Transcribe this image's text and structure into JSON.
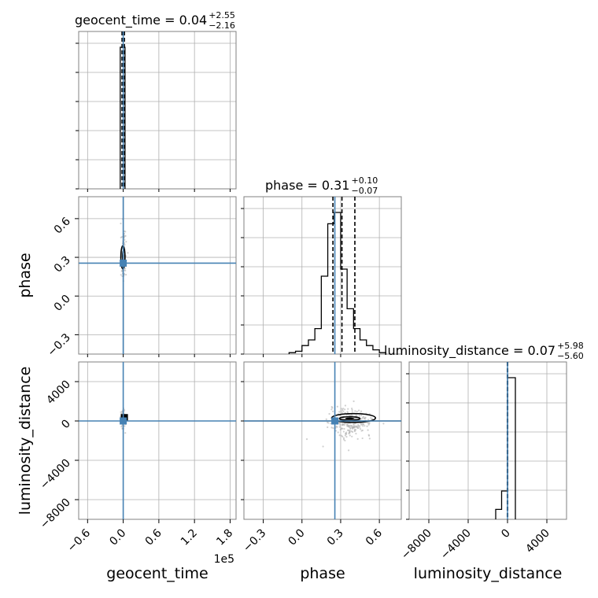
{
  "chart_data": {
    "type": "corner",
    "parameters": [
      "geocent_time",
      "phase",
      "luminosity_distance"
    ],
    "axis_labels": {
      "geocent_time": "geocent_time",
      "phase": "phase",
      "luminosity_distance": "luminosity_distance"
    },
    "offset_text": {
      "geocent_time": "1e5"
    },
    "titles": [
      {
        "param": "geocent_time",
        "name": "geocent_time",
        "median": "0.04",
        "plus": "+2.55",
        "minus": "−2.16"
      },
      {
        "param": "phase",
        "name": "phase",
        "median": "0.31",
        "plus": "+0.10",
        "minus": "−0.07"
      },
      {
        "param": "luminosity_distance",
        "name": "luminosity_distance",
        "median": "0.07",
        "plus": "+5.98",
        "minus": "−5.60"
      }
    ],
    "ranges": {
      "geocent_time": [
        -0.75,
        1.9
      ],
      "phase": [
        -0.45,
        0.77
      ],
      "luminosity_distance": [
        -10000,
        6000
      ]
    },
    "ticks": {
      "geocent_time": {
        "values": [
          -0.6,
          0.0,
          0.6,
          1.2,
          1.8
        ],
        "labels": [
          "−0.6",
          "0.0",
          "0.6",
          "1.2",
          "1.8"
        ]
      },
      "phase": {
        "values": [
          -0.3,
          0.0,
          0.3,
          0.6
        ],
        "labels": [
          "−0.3",
          "0.0",
          "0.3",
          "0.6"
        ]
      },
      "luminosity_distance_y": {
        "values": [
          4000,
          0,
          -4000,
          -8000
        ],
        "labels": [
          "4000",
          "0",
          "−4000",
          "−8000"
        ]
      },
      "luminosity_distance_x": {
        "values": [
          -8000,
          -4000,
          0,
          4000
        ],
        "labels": [
          "−8000",
          "−4000",
          "0",
          "4000"
        ]
      }
    },
    "truths": {
      "geocent_time": 0.0,
      "phase": 0.255,
      "luminosity_distance": 0
    },
    "quantiles": {
      "geocent_time": [
        -0.02,
        0.02
      ],
      "phase": [
        0.24,
        0.31,
        0.41
      ],
      "luminosity_distance": [
        -20,
        20
      ]
    },
    "histograms": {
      "geocent_time": {
        "edges": [
          -0.05,
          0.03
        ],
        "counts": [
          1.0
        ]
      },
      "phase": {
        "edges": [
          -0.1,
          -0.05,
          0.0,
          0.05,
          0.1,
          0.15,
          0.2,
          0.25,
          0.3,
          0.35,
          0.4,
          0.45,
          0.5,
          0.55,
          0.6,
          0.65
        ],
        "counts": [
          0.01,
          0.02,
          0.06,
          0.1,
          0.18,
          0.55,
          0.92,
          1.0,
          0.6,
          0.32,
          0.18,
          0.1,
          0.06,
          0.03,
          0.01
        ]
      },
      "luminosity_distance": {
        "edges": [
          -1200,
          -600,
          0,
          800
        ],
        "counts": [
          0.07,
          0.2,
          1.0
        ]
      }
    },
    "grid": true,
    "truth_color": "#4682b4",
    "hist_color": "#000000",
    "scatter_color": "#b0b0b0"
  }
}
